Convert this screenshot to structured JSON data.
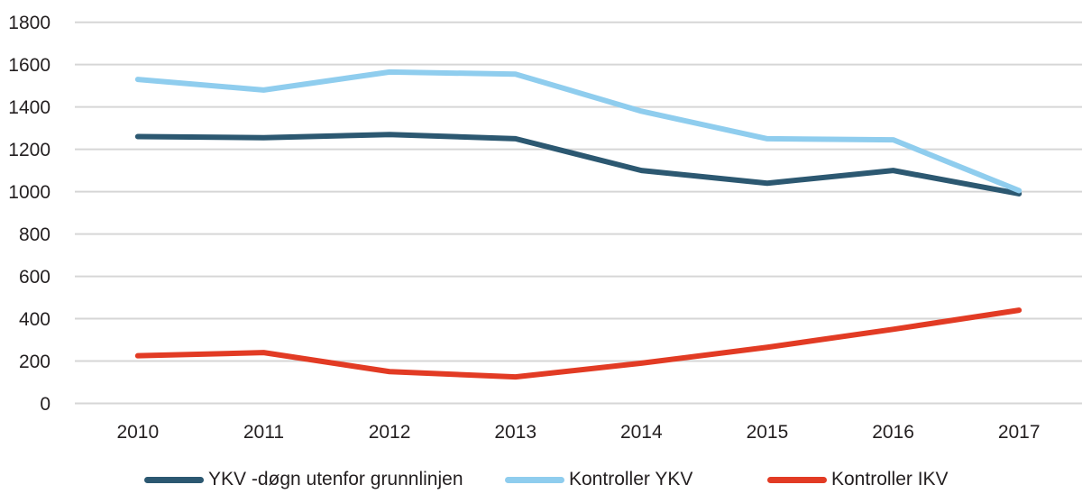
{
  "chart_data": {
    "type": "line",
    "title": "",
    "xlabel": "",
    "ylabel": "",
    "categories": [
      "2010",
      "2011",
      "2012",
      "2013",
      "2014",
      "2015",
      "2016",
      "2017"
    ],
    "series": [
      {
        "name": "YKV -døgn utenfor grunnlinjen",
        "color": "#2c5871",
        "values": [
          1260,
          1255,
          1270,
          1250,
          1100,
          1040,
          1100,
          990
        ]
      },
      {
        "name": "Kontroller YKV",
        "color": "#8fcdee",
        "values": [
          1530,
          1480,
          1565,
          1555,
          1380,
          1250,
          1245,
          1005
        ]
      },
      {
        "name": "Kontroller IKV",
        "color": "#e23b24",
        "values": [
          225,
          240,
          150,
          125,
          190,
          265,
          350,
          440
        ]
      }
    ],
    "ylim": [
      0,
      1800
    ],
    "ytick_step": 200,
    "grid": true,
    "gridline_color": "#d6d6d6",
    "text_color": "#231f20",
    "legend_position": "bottom"
  }
}
